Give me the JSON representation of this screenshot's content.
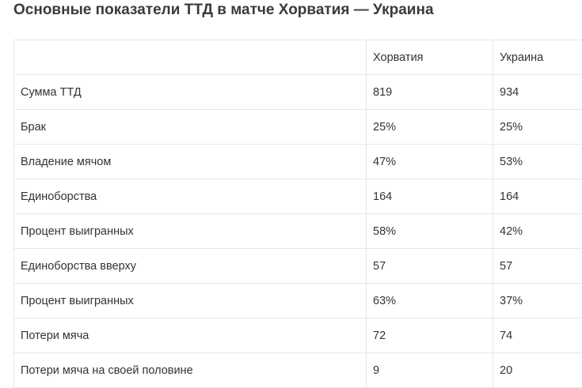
{
  "title": "Основные показатели ТТД в матче Хорватия — Украина",
  "table": {
    "header": {
      "label": "",
      "team_a": "Хорватия",
      "team_b": "Украина"
    },
    "rows": [
      {
        "label": "Сумма ТТД",
        "team_a": "819",
        "team_b": "934"
      },
      {
        "label": "Брак",
        "team_a": "25%",
        "team_b": "25%"
      },
      {
        "label": "Владение мячом",
        "team_a": "47%",
        "team_b": "53%"
      },
      {
        "label": "Единоборства",
        "team_a": "164",
        "team_b": "164"
      },
      {
        "label": "Процент выигранных",
        "team_a": "58%",
        "team_b": "42%"
      },
      {
        "label": "Единоборства вверху",
        "team_a": "57",
        "team_b": "57"
      },
      {
        "label": "Процент выигранных",
        "team_a": "63%",
        "team_b": "37%"
      },
      {
        "label": "Потери мяча",
        "team_a": "72",
        "team_b": "74"
      },
      {
        "label": "Потери мяча на своей половине",
        "team_a": "9",
        "team_b": "20"
      }
    ]
  }
}
